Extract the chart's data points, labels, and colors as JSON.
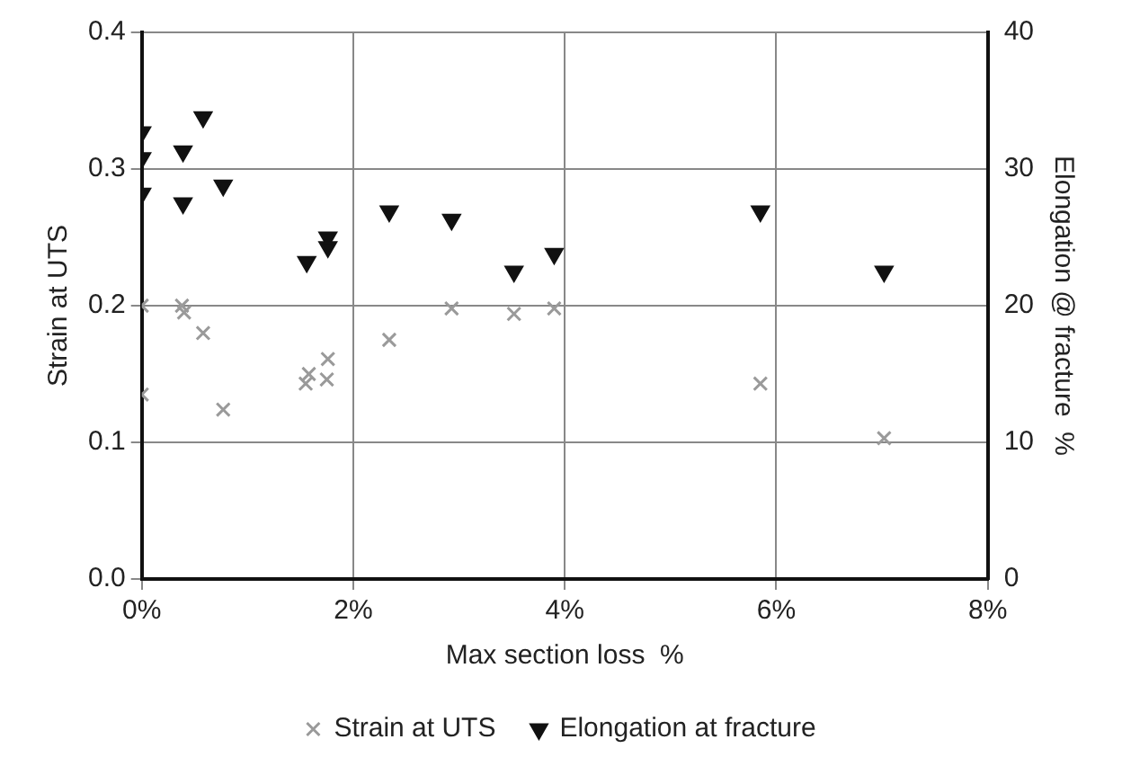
{
  "chart_data": {
    "type": "scatter",
    "xlabel": "Max section loss  %",
    "ylabel": "Strain at UTS",
    "y2label": "Elongation @ fracture  %",
    "xlim": [
      0,
      8
    ],
    "xticks": [
      {
        "value": 0,
        "label": "0%"
      },
      {
        "value": 2,
        "label": "2%"
      },
      {
        "value": 4,
        "label": "4%"
      },
      {
        "value": 6,
        "label": "6%"
      },
      {
        "value": 8,
        "label": "8%"
      }
    ],
    "ylim": [
      0,
      0.4
    ],
    "yticks": [
      {
        "value": 0,
        "label": "0.0"
      },
      0.1,
      0.2,
      0.3,
      0.4
    ],
    "y2lim": [
      0,
      40
    ],
    "y2ticks": [
      0,
      10,
      20,
      30,
      40
    ],
    "grid": true,
    "legend": "bottom",
    "series": [
      {
        "name": "Strain at UTS",
        "color": "#9a9a9a",
        "marker": "cross",
        "x": [
          0,
          0,
          0.38,
          0.4,
          0.58,
          0.77,
          1.55,
          1.58,
          1.76,
          1.75,
          2.34,
          2.93,
          3.52,
          3.9,
          5.85,
          7.02
        ],
        "values": [
          0.2,
          0.135,
          0.2,
          0.195,
          0.18,
          0.124,
          0.143,
          0.15,
          0.161,
          0.146,
          0.175,
          0.198,
          0.194,
          0.198,
          0.143,
          0.103
        ]
      },
      {
        "name": "Elongation at fracture",
        "color": "#111111",
        "marker": "triangle",
        "axis": "y2",
        "x": [
          0,
          0,
          0,
          0.39,
          0.39,
          0.58,
          0.77,
          1.56,
          1.76,
          1.76,
          2.34,
          2.93,
          3.52,
          3.9,
          5.85,
          7.02
        ],
        "values": [
          32.7,
          30.8,
          28.2,
          31.3,
          27.5,
          33.8,
          28.8,
          23.2,
          25.0,
          24.3,
          26.9,
          26.3,
          22.5,
          23.8,
          26.9,
          22.5
        ]
      }
    ]
  }
}
